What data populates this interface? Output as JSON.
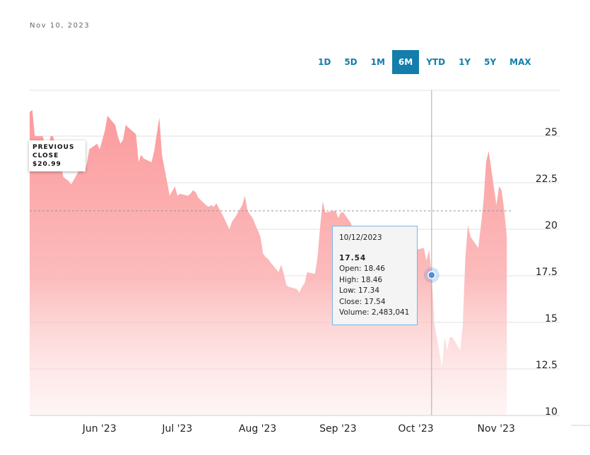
{
  "header": {
    "date": "Nov 10, 2023"
  },
  "range_tabs": [
    {
      "label": "1D",
      "active": false
    },
    {
      "label": "5D",
      "active": false
    },
    {
      "label": "1M",
      "active": false
    },
    {
      "label": "6M",
      "active": true
    },
    {
      "label": "YTD",
      "active": false
    },
    {
      "label": "1Y",
      "active": false
    },
    {
      "label": "5Y",
      "active": false
    },
    {
      "label": "MAX",
      "active": false
    }
  ],
  "previous_close": {
    "line1": "PREVIOUS",
    "line2": "CLOSE",
    "value": "$20.99",
    "price": 20.99
  },
  "tooltip": {
    "date": "10/12/2023",
    "price": "17.54",
    "open": "Open: 18.46",
    "high": "High: 18.46",
    "low": "Low: 17.34",
    "close": "Close: 17.54",
    "volume": "Volume: 2,483,041"
  },
  "colors": {
    "accent": "#137dab",
    "area_fill": "#fc9a9c",
    "marker": "#4a90e2"
  },
  "chart_data": {
    "type": "area",
    "x_range": [
      "2023-05-10",
      "2023-11-10"
    ],
    "ylim": [
      10,
      26.5
    ],
    "y_ticks": [
      "25",
      "22.5",
      "20",
      "17.5",
      "15",
      "12.5",
      "10"
    ],
    "y_tick_values": [
      25,
      22.5,
      20,
      17.5,
      15,
      12.5,
      10
    ],
    "x_ticks": [
      {
        "label": "Jun '23",
        "date": "2023-06-01"
      },
      {
        "label": "Jul '23",
        "date": "2023-07-01"
      },
      {
        "label": "Aug '23",
        "date": "2023-08-01"
      },
      {
        "label": "Sep '23",
        "date": "2023-09-01"
      },
      {
        "label": "Oct '23",
        "date": "2023-10-01"
      },
      {
        "label": "Nov '23",
        "date": "2023-11-01"
      }
    ],
    "grid": true,
    "crosshair_date": "2023-10-12",
    "crosshair_value": 17.54,
    "series": [
      {
        "points": [
          [
            "2023-05-10",
            26.3
          ],
          [
            "2023-05-11",
            26.4
          ],
          [
            "2023-05-12",
            25.0
          ],
          [
            "2023-05-15",
            25.0
          ],
          [
            "2023-05-16",
            24.5
          ],
          [
            "2023-05-17",
            24.0
          ],
          [
            "2023-05-18",
            25.0
          ],
          [
            "2023-05-19",
            25.0
          ],
          [
            "2023-05-22",
            23.5
          ],
          [
            "2023-05-23",
            22.8
          ],
          [
            "2023-05-24",
            22.7
          ],
          [
            "2023-05-25",
            22.6
          ],
          [
            "2023-05-26",
            22.4
          ],
          [
            "2023-05-30",
            23.4
          ],
          [
            "2023-05-31",
            23.0
          ],
          [
            "2023-06-01",
            23.5
          ],
          [
            "2023-06-02",
            24.3
          ],
          [
            "2023-06-05",
            24.6
          ],
          [
            "2023-06-06",
            24.3
          ],
          [
            "2023-06-07",
            24.8
          ],
          [
            "2023-06-08",
            25.3
          ],
          [
            "2023-06-09",
            26.1
          ],
          [
            "2023-06-12",
            25.6
          ],
          [
            "2023-06-13",
            25.0
          ],
          [
            "2023-06-14",
            24.6
          ],
          [
            "2023-06-15",
            24.8
          ],
          [
            "2023-06-16",
            25.6
          ],
          [
            "2023-06-20",
            25.1
          ],
          [
            "2023-06-21",
            23.6
          ],
          [
            "2023-06-22",
            24.0
          ],
          [
            "2023-06-23",
            23.8
          ],
          [
            "2023-06-26",
            23.6
          ],
          [
            "2023-06-27",
            24.2
          ],
          [
            "2023-06-28",
            25.1
          ],
          [
            "2023-06-29",
            26.0
          ],
          [
            "2023-06-30",
            24.0
          ],
          [
            "2023-07-03",
            21.8
          ],
          [
            "2023-07-05",
            22.3
          ],
          [
            "2023-07-06",
            21.8
          ],
          [
            "2023-07-07",
            21.9
          ],
          [
            "2023-07-10",
            21.8
          ],
          [
            "2023-07-11",
            21.9
          ],
          [
            "2023-07-12",
            22.1
          ],
          [
            "2023-07-13",
            22.0
          ],
          [
            "2023-07-14",
            21.7
          ],
          [
            "2023-07-17",
            21.3
          ],
          [
            "2023-07-18",
            21.2
          ],
          [
            "2023-07-19",
            21.3
          ],
          [
            "2023-07-20",
            21.2
          ],
          [
            "2023-07-21",
            21.4
          ],
          [
            "2023-07-24",
            20.6
          ],
          [
            "2023-07-25",
            20.3
          ],
          [
            "2023-07-26",
            20.0
          ],
          [
            "2023-07-27",
            20.4
          ],
          [
            "2023-07-28",
            20.6
          ],
          [
            "2023-07-31",
            21.3
          ],
          [
            "2023-08-01",
            21.8
          ],
          [
            "2023-08-02",
            21.0
          ],
          [
            "2023-08-03",
            20.8
          ],
          [
            "2023-08-04",
            20.6
          ],
          [
            "2023-08-07",
            19.6
          ],
          [
            "2023-08-08",
            18.7
          ],
          [
            "2023-08-09",
            18.5
          ],
          [
            "2023-08-10",
            18.4
          ],
          [
            "2023-08-11",
            18.2
          ],
          [
            "2023-08-14",
            17.7
          ],
          [
            "2023-08-15",
            18.1
          ],
          [
            "2023-08-16",
            17.6
          ],
          [
            "2023-08-17",
            17.0
          ],
          [
            "2023-08-18",
            16.9
          ],
          [
            "2023-08-21",
            16.8
          ],
          [
            "2023-08-22",
            16.6
          ],
          [
            "2023-08-23",
            16.9
          ],
          [
            "2023-08-24",
            17.1
          ],
          [
            "2023-08-25",
            17.7
          ],
          [
            "2023-08-28",
            17.6
          ],
          [
            "2023-08-29",
            18.5
          ],
          [
            "2023-08-30",
            20.1
          ],
          [
            "2023-08-31",
            21.5
          ],
          [
            "2023-09-01",
            20.9
          ],
          [
            "2023-09-05",
            21.0
          ],
          [
            "2023-09-06",
            20.6
          ],
          [
            "2023-09-07",
            20.9
          ],
          [
            "2023-09-08",
            20.9
          ],
          [
            "2023-09-11",
            20.3
          ],
          [
            "2023-09-12",
            19.6
          ],
          [
            "2023-09-13",
            19.3
          ],
          [
            "2023-09-14",
            18.9
          ],
          [
            "2023-09-15",
            18.6
          ],
          [
            "2023-09-18",
            18.8
          ],
          [
            "2023-09-19",
            18.0
          ],
          [
            "2023-09-20",
            17.5
          ],
          [
            "2023-09-21",
            17.0
          ],
          [
            "2023-09-22",
            16.8
          ],
          [
            "2023-09-25",
            17.2
          ],
          [
            "2023-09-26",
            17.8
          ],
          [
            "2023-09-27",
            18.4
          ],
          [
            "2023-09-28",
            18.9
          ],
          [
            "2023-09-29",
            19.0
          ],
          [
            "2023-10-02",
            18.6
          ],
          [
            "2023-10-03",
            18.0
          ],
          [
            "2023-10-04",
            17.9
          ],
          [
            "2023-10-05",
            18.5
          ],
          [
            "2023-10-06",
            18.9
          ],
          [
            "2023-10-09",
            19.0
          ],
          [
            "2023-10-10",
            18.3
          ],
          [
            "2023-10-11",
            18.9
          ],
          [
            "2023-10-12",
            17.54
          ],
          [
            "2023-10-13",
            15.0
          ],
          [
            "2023-10-16",
            12.6
          ],
          [
            "2023-10-17",
            14.2
          ],
          [
            "2023-10-18",
            13.5
          ],
          [
            "2023-10-19",
            14.2
          ],
          [
            "2023-10-20",
            14.2
          ],
          [
            "2023-10-23",
            13.5
          ],
          [
            "2023-10-24",
            14.8
          ],
          [
            "2023-10-25",
            18.5
          ],
          [
            "2023-10-26",
            20.2
          ],
          [
            "2023-10-27",
            19.6
          ],
          [
            "2023-10-30",
            19.0
          ],
          [
            "2023-10-31",
            20.2
          ],
          [
            "2023-11-01",
            21.5
          ],
          [
            "2023-11-02",
            23.6
          ],
          [
            "2023-11-03",
            24.2
          ],
          [
            "2023-11-06",
            21.3
          ],
          [
            "2023-11-07",
            22.3
          ],
          [
            "2023-11-08",
            22.1
          ],
          [
            "2023-11-09",
            21.0
          ],
          [
            "2023-11-10",
            19.6
          ]
        ]
      }
    ]
  }
}
